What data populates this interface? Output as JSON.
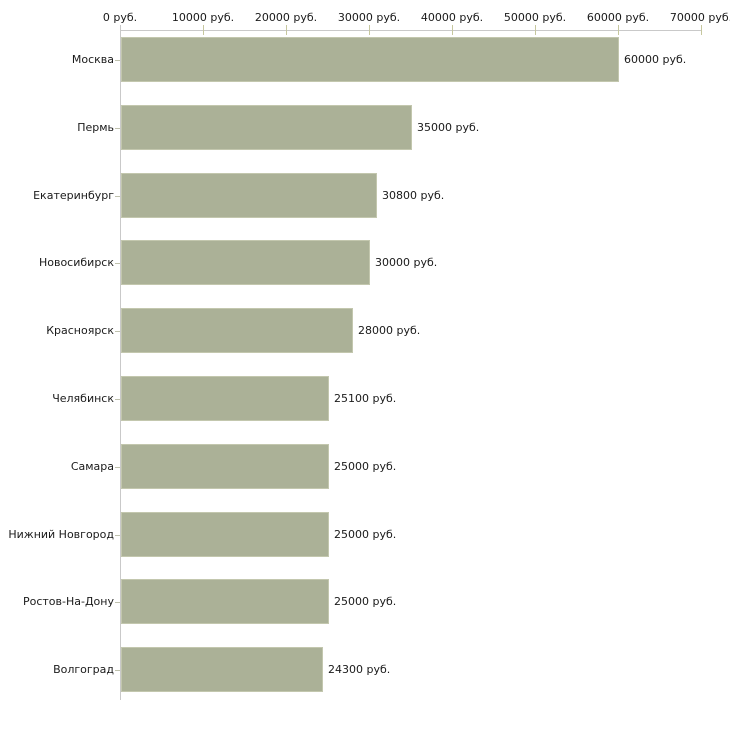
{
  "chart_data": {
    "type": "bar",
    "orientation": "horizontal",
    "title": "",
    "xlabel": "",
    "ylabel": "",
    "unit": "руб.",
    "categories": [
      "Москва",
      "Пермь",
      "Екатеринбург",
      "Новосибирск",
      "Красноярск",
      "Челябинск",
      "Самара",
      "Нижний Новгород",
      "Ростов-На-Дону",
      "Волгоград"
    ],
    "values": [
      60000,
      35000,
      30800,
      30000,
      28000,
      25100,
      25000,
      25000,
      25000,
      24300
    ],
    "value_labels": [
      "60000 руб.",
      "35000 руб.",
      "30800 руб.",
      "30000 руб.",
      "28000 руб.",
      "25100 руб.",
      "25000 руб.",
      "25000 руб.",
      "25000 руб.",
      "24300 руб."
    ],
    "xlim": [
      0,
      70000
    ],
    "x_ticks": [
      0,
      10000,
      20000,
      30000,
      40000,
      50000,
      60000,
      70000
    ],
    "x_tick_labels": [
      "0 руб.",
      "10000 руб.",
      "20000 руб.",
      "30000 руб.",
      "40000 руб.",
      "50000 руб.",
      "60000 руб.",
      "70000 руб."
    ],
    "grid": false,
    "legend": false,
    "axis_position": "top"
  },
  "colors": {
    "background": "#ffffff",
    "bar_fill": "#abb197",
    "bar_border": "#c3c7ae",
    "axis_line": "#c9c9c9",
    "tick_mark": "#c6c79e",
    "category_tick": "#bfc1ad",
    "text": "#1a1a1a"
  }
}
